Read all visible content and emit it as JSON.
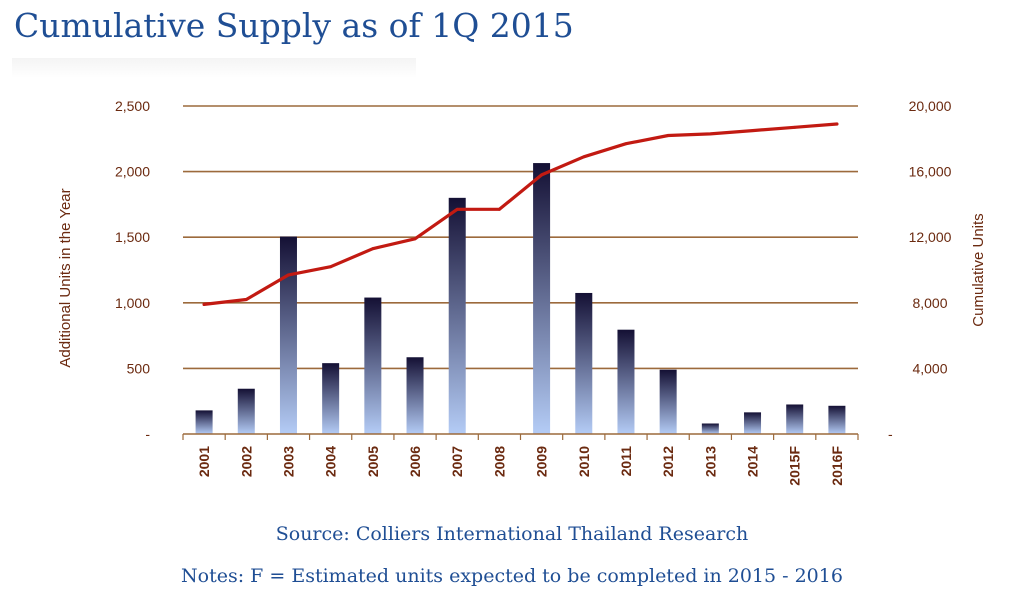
{
  "title": "Cumulative Supply as of 1Q 2015",
  "source": "Source: Colliers International Thailand Research",
  "notes": "Notes: F = Estimated units expected to be completed in 2015 - 2016",
  "colors": {
    "title": "#1f4e94",
    "axis_text": "#6b2a10",
    "gridline": "#9c6a3c",
    "line": "#c21a12",
    "bar_top": "#141034",
    "bar_bottom": "#b4ccf6"
  },
  "chart_data": {
    "type": "bar+line",
    "categories": [
      "2001",
      "2002",
      "2003",
      "2004",
      "2005",
      "2006",
      "2007",
      "2008",
      "2009",
      "2010",
      "2011",
      "2012",
      "2013",
      "2014",
      "2015F",
      "2016F"
    ],
    "series": [
      {
        "name": "Additional Units in the Year",
        "type": "bar",
        "axis": "left",
        "values": [
          180,
          345,
          1505,
          540,
          1040,
          585,
          1800,
          0,
          2065,
          1075,
          795,
          490,
          80,
          165,
          225,
          215
        ]
      },
      {
        "name": "Cumulative Units",
        "type": "line",
        "axis": "right",
        "values": [
          7900,
          8200,
          9700,
          10200,
          11300,
          11900,
          13700,
          13700,
          15800,
          16900,
          17700,
          18200,
          18300,
          18500,
          18700,
          18900
        ]
      }
    ],
    "ylabel_left": "Additional Units in the Year",
    "ylabel_right": "Cumulative Units",
    "ylim_left": [
      0,
      2500
    ],
    "ylim_right": [
      0,
      20000
    ],
    "yticks_left": [
      "-",
      "500",
      "1,000",
      "1,500",
      "2,000",
      "2,500"
    ],
    "yticks_right": [
      "-",
      "4,000",
      "8,000",
      "12,000",
      "16,000",
      "20,000"
    ],
    "grid": true
  }
}
